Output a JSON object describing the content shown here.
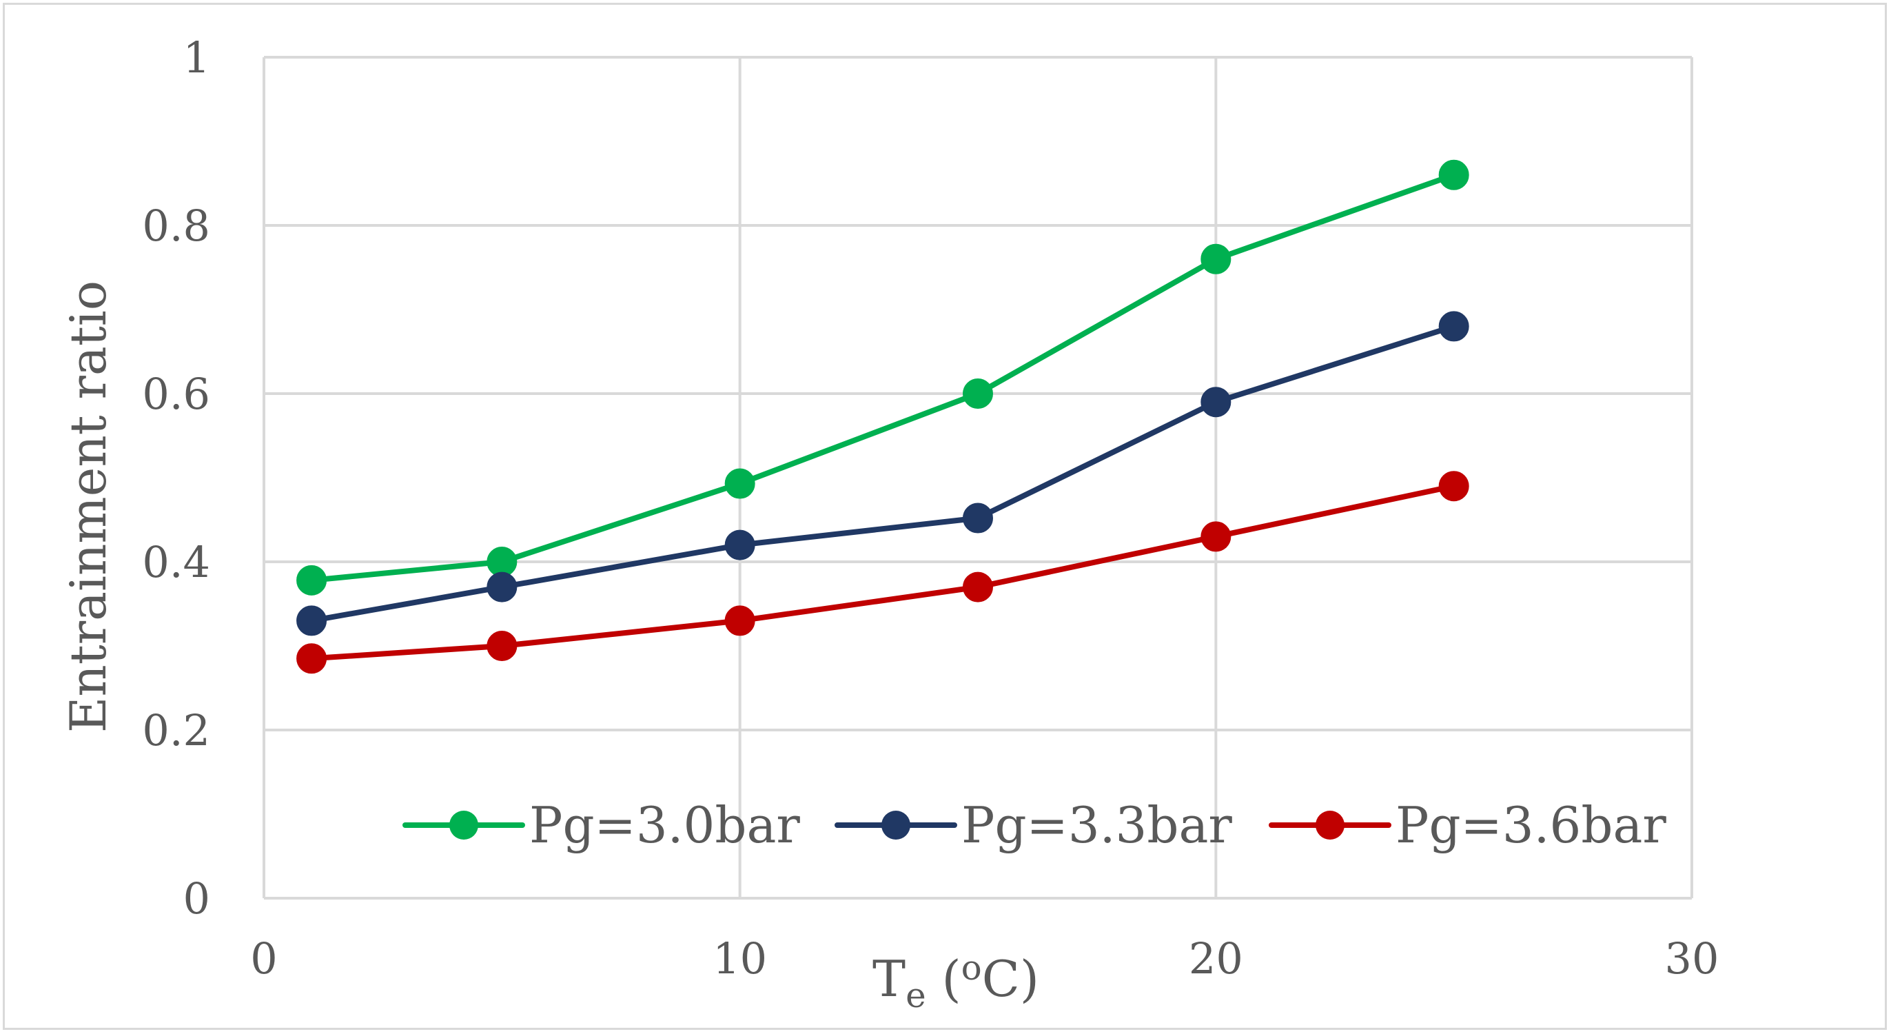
{
  "chart_data": {
    "type": "line",
    "title": "",
    "xlabel": {
      "main": "T",
      "sub": "e",
      "open": " (",
      "sup": "o",
      "unit": "C)"
    },
    "ylabel": "Entrainment ratio",
    "xlim": [
      0,
      30
    ],
    "ylim": [
      0,
      1
    ],
    "xticks": [
      0,
      10,
      20,
      30
    ],
    "xtick_labels": [
      "0",
      "10",
      "20",
      "30"
    ],
    "yticks": [
      0,
      0.2,
      0.4,
      0.6,
      0.8,
      1
    ],
    "ytick_labels": [
      "0",
      "0.2",
      "0.4",
      "0.6",
      "0.8",
      "1"
    ],
    "grid": true,
    "legend_position": "bottom-inside",
    "series": [
      {
        "name": "Pg=3.0bar",
        "color": "#00b050",
        "x": [
          1,
          5,
          10,
          15,
          20,
          25
        ],
        "y": [
          0.378,
          0.4,
          0.493,
          0.6,
          0.76,
          0.86
        ]
      },
      {
        "name": "Pg=3.3bar",
        "color": "#203864",
        "x": [
          1,
          5,
          10,
          15,
          20,
          25
        ],
        "y": [
          0.33,
          0.37,
          0.42,
          0.452,
          0.59,
          0.68
        ]
      },
      {
        "name": "Pg=3.6bar",
        "color": "#c00000",
        "x": [
          1,
          5,
          10,
          15,
          20,
          25
        ],
        "y": [
          0.285,
          0.3,
          0.33,
          0.37,
          0.43,
          0.49
        ]
      }
    ]
  }
}
